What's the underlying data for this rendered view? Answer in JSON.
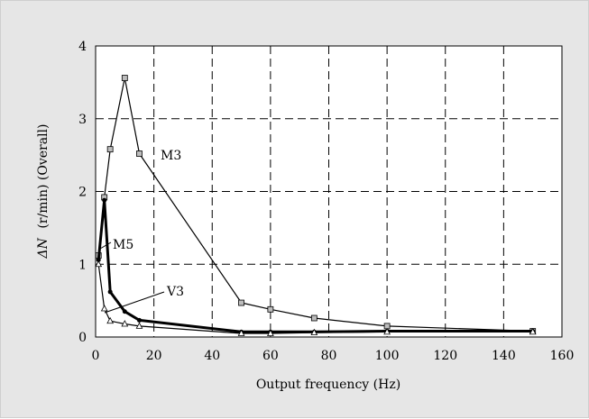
{
  "chart_data": {
    "type": "line",
    "title": "",
    "xlabel": "Output frequency (Hz)",
    "ylabel_parts": [
      "ΔN",
      "(r/min) (Overall)"
    ],
    "xlim": [
      0,
      160
    ],
    "ylim": [
      0,
      4
    ],
    "x_ticks": [
      0,
      20,
      40,
      60,
      80,
      100,
      120,
      140,
      160
    ],
    "y_ticks": [
      0,
      1,
      2,
      3,
      4
    ],
    "grid": true,
    "legend": "none",
    "series": [
      {
        "name": "M3",
        "marker": "square",
        "x": [
          1,
          3,
          5,
          10,
          15,
          50,
          60,
          75,
          100,
          150
        ],
        "y": [
          1.12,
          1.92,
          2.58,
          3.56,
          2.52,
          0.47,
          0.38,
          0.26,
          0.15,
          0.08
        ]
      },
      {
        "name": "M5",
        "marker": "circle",
        "x": [
          1,
          3,
          5,
          10,
          15,
          50,
          60,
          75,
          100,
          150
        ],
        "y": [
          1.06,
          1.88,
          0.62,
          0.35,
          0.23,
          0.07,
          0.07,
          0.07,
          0.08,
          0.08
        ]
      },
      {
        "name": "V3",
        "marker": "triangle",
        "x": [
          1,
          3,
          5,
          10,
          15,
          50,
          60,
          75,
          100,
          150
        ],
        "y": [
          1.0,
          0.39,
          0.22,
          0.18,
          0.15,
          0.05,
          0.05,
          0.06,
          0.07,
          0.07
        ]
      }
    ]
  }
}
